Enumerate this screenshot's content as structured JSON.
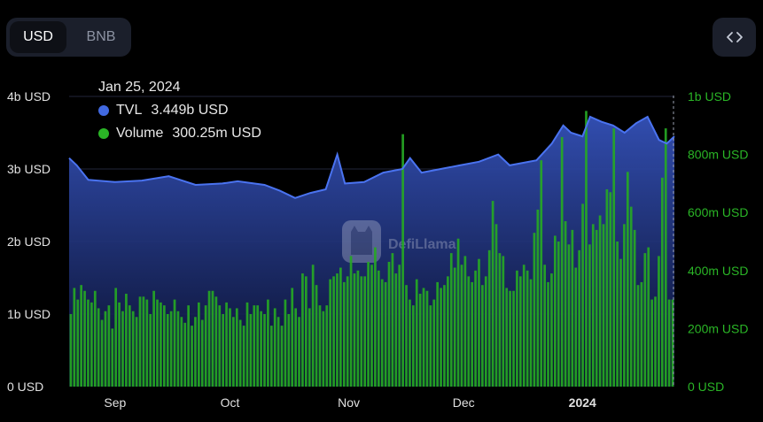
{
  "currency_toggle": {
    "options": [
      "USD",
      "BNB"
    ],
    "active": "USD"
  },
  "embed_button": {
    "icon": "code-icon"
  },
  "tooltip": {
    "date": "Jan 25, 2024",
    "tvl_label": "TVL",
    "tvl_value": "3.449b USD",
    "tvl_color": "#4169e1",
    "volume_label": "Volume",
    "volume_value": "300.25m USD",
    "volume_color": "#2ab526"
  },
  "watermark": "DefiLlama",
  "chart_data": {
    "type": "bar+line",
    "x_range": [
      "2023-08-20",
      "2024-01-25"
    ],
    "x_ticks": [
      {
        "date": "2023-09-01",
        "label": "Sep"
      },
      {
        "date": "2023-10-01",
        "label": "Oct"
      },
      {
        "date": "2023-11-01",
        "label": "Nov"
      },
      {
        "date": "2023-12-01",
        "label": "Dec"
      },
      {
        "date": "2024-01-01",
        "label": "2024"
      }
    ],
    "left_axis": {
      "label": "TVL",
      "ticks": [
        "0 USD",
        "1b USD",
        "2b USD",
        "3b USD",
        "4b USD"
      ],
      "ylim": [
        0,
        4000000000
      ]
    },
    "right_axis": {
      "label": "Volume",
      "ticks": [
        "0 USD",
        "200m USD",
        "400m USD",
        "600m USD",
        "800m USD",
        "1b USD"
      ],
      "ylim": [
        0,
        1000000000
      ]
    },
    "tvl_series": {
      "name": "TVL",
      "unit": "b USD",
      "points": [
        [
          "2023-08-20",
          3.15
        ],
        [
          "2023-08-22",
          3.05
        ],
        [
          "2023-08-25",
          2.85
        ],
        [
          "2023-09-01",
          2.82
        ],
        [
          "2023-09-08",
          2.84
        ],
        [
          "2023-09-15",
          2.9
        ],
        [
          "2023-09-22",
          2.78
        ],
        [
          "2023-09-29",
          2.8
        ],
        [
          "2023-10-03",
          2.83
        ],
        [
          "2023-10-10",
          2.78
        ],
        [
          "2023-10-14",
          2.7
        ],
        [
          "2023-10-18",
          2.6
        ],
        [
          "2023-10-22",
          2.67
        ],
        [
          "2023-10-26",
          2.72
        ],
        [
          "2023-10-29",
          3.2
        ],
        [
          "2023-10-31",
          2.8
        ],
        [
          "2023-11-05",
          2.82
        ],
        [
          "2023-11-10",
          2.95
        ],
        [
          "2023-11-15",
          3.0
        ],
        [
          "2023-11-17",
          3.15
        ],
        [
          "2023-11-20",
          2.95
        ],
        [
          "2023-11-25",
          3.0
        ],
        [
          "2023-11-30",
          3.05
        ],
        [
          "2023-12-05",
          3.1
        ],
        [
          "2023-12-10",
          3.2
        ],
        [
          "2023-12-13",
          3.05
        ],
        [
          "2023-12-20",
          3.12
        ],
        [
          "2023-12-24",
          3.35
        ],
        [
          "2023-12-27",
          3.6
        ],
        [
          "2023-12-29",
          3.5
        ],
        [
          "2024-01-01",
          3.45
        ],
        [
          "2024-01-03",
          3.72
        ],
        [
          "2024-01-06",
          3.65
        ],
        [
          "2024-01-09",
          3.6
        ],
        [
          "2024-01-12",
          3.5
        ],
        [
          "2024-01-15",
          3.63
        ],
        [
          "2024-01-18",
          3.72
        ],
        [
          "2024-01-21",
          3.4
        ],
        [
          "2024-01-23",
          3.35
        ],
        [
          "2024-01-25",
          3.45
        ]
      ]
    },
    "volume_series": {
      "name": "Volume",
      "unit": "m USD",
      "values": [
        250,
        340,
        300,
        350,
        330,
        300,
        290,
        330,
        270,
        230,
        260,
        280,
        200,
        340,
        290,
        260,
        320,
        280,
        260,
        240,
        310,
        310,
        300,
        250,
        330,
        300,
        290,
        280,
        250,
        260,
        300,
        260,
        240,
        220,
        280,
        210,
        240,
        290,
        230,
        280,
        330,
        330,
        310,
        280,
        250,
        290,
        270,
        240,
        270,
        230,
        210,
        290,
        250,
        280,
        280,
        260,
        250,
        300,
        210,
        270,
        240,
        210,
        300,
        250,
        340,
        270,
        240,
        390,
        380,
        270,
        420,
        350,
        280,
        260,
        280,
        370,
        380,
        390,
        410,
        360,
        380,
        450,
        390,
        400,
        380,
        380,
        430,
        420,
        480,
        400,
        370,
        360,
        430,
        460,
        390,
        420,
        870,
        350,
        300,
        280,
        370,
        320,
        340,
        330,
        280,
        300,
        360,
        340,
        350,
        380,
        460,
        410,
        510,
        420,
        450,
        380,
        360,
        400,
        440,
        350,
        380,
        470,
        640,
        560,
        460,
        450,
        340,
        330,
        330,
        400,
        380,
        420,
        400,
        370,
        530,
        610,
        780,
        420,
        360,
        390,
        520,
        500,
        860,
        570,
        490,
        540,
        410,
        470,
        630,
        950,
        490,
        560,
        540,
        590,
        560,
        680,
        670,
        890,
        500,
        440,
        560,
        740,
        620,
        540,
        350,
        360,
        460,
        480,
        300,
        310,
        450,
        720,
        890,
        300,
        300
      ]
    }
  }
}
